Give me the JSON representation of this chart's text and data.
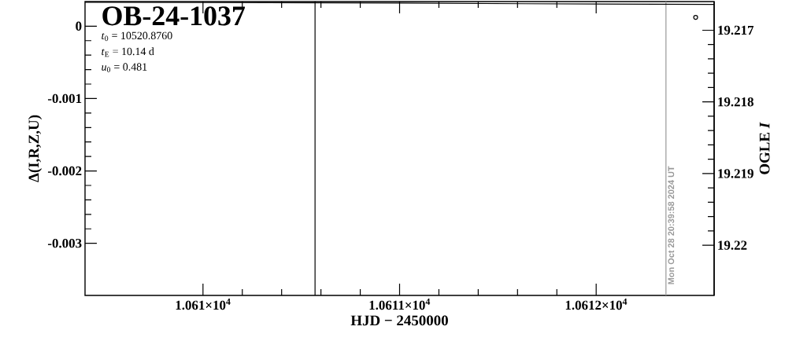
{
  "chart_data": {
    "type": "line",
    "title": "OB-24-1037",
    "xlabel": "HJD − 2450000",
    "ylabel": "Δ(I,R,Z,U)",
    "y2label": "OGLE *I*",
    "annotations": [
      "*t*$_{0}$ = 10520.8760",
      "*t*$_{E}$ = 10.14 d",
      "*u*$_{0}$ = 0.481",
      {
        "text": "Mon Oct 28 20:39:58 2024 UT",
        "x": 10612.355,
        "y": -0.0036
      }
    ],
    "xlim": [
      10609.4,
      10612.6
    ],
    "xticks": [
      {
        "value": 10610,
        "label": "1.061×10$^{4}$"
      },
      {
        "value": 10611,
        "label": "1.0611×10$^{4}$"
      },
      {
        "value": 10612,
        "label": "1.0612×10$^{4}$"
      }
    ],
    "ylim": [
      -0.00372,
      0.00034
    ],
    "yticks": [
      0,
      -0.001,
      -0.002,
      -0.003
    ],
    "y2lim": [
      19.2207,
      19.2166
    ],
    "y2ticks": [
      19.217,
      19.218,
      19.219,
      19.22
    ],
    "series": [
      {
        "color": "#000000",
        "x": [
          10609.4,
          10611.0,
          10611.64,
          10612.6
        ],
        "values": [
          0.00033,
          0.00032,
          0.00031,
          0.0003
        ]
      },
      {
        "type": "scatter",
        "axis": "y2",
        "marker": "circle",
        "color": "#000000",
        "x": [
          10612.506
        ],
        "values": [
          19.21682
        ]
      }
    ],
    "ref_lines": [
      {
        "axis": "x",
        "value": 10610.57,
        "color": "#000000"
      },
      {
        "axis": "x",
        "value": 10612.355,
        "color": "#999999"
      }
    ]
  }
}
